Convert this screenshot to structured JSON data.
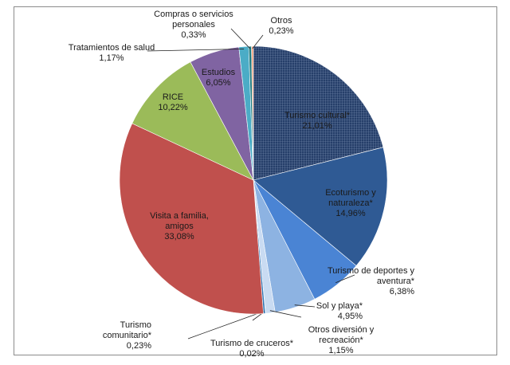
{
  "chart_data": {
    "type": "pie",
    "categories": [
      "Turismo cultural*",
      "Ecoturismo y naturaleza*",
      "Turismo de deportes y aventura*",
      "Sol y playa*",
      "Otros diversión y recreación*",
      "Turismo de cruceros*",
      "Turismo comunitario*",
      "Visita a familia, amigos",
      "RICE",
      "Estudios",
      "Tratamientos de salud",
      "Compras o servicios personales",
      "Otros"
    ],
    "values": [
      21.01,
      14.96,
      6.38,
      4.95,
      1.15,
      0.02,
      0.23,
      33.08,
      10.22,
      6.05,
      1.17,
      0.33,
      0.23
    ],
    "value_labels": [
      "21,01%",
      "14,96%",
      "6,38%",
      "4,95%",
      "1,15%",
      "0,02%",
      "0,23%",
      "33,08%",
      "10,22%",
      "6,05%",
      "1,17%",
      "0,33%",
      "0,23%"
    ],
    "colors": [
      "#263f6a",
      "#2f5a94",
      "#4a84d4",
      "#8db3e2",
      "#c9dbf2",
      "#1f4e79",
      "#2e75b6",
      "#c0504d",
      "#9bbb59",
      "#8064a2",
      "#4bacc6",
      "#1f7b80",
      "#f4a582"
    ]
  }
}
